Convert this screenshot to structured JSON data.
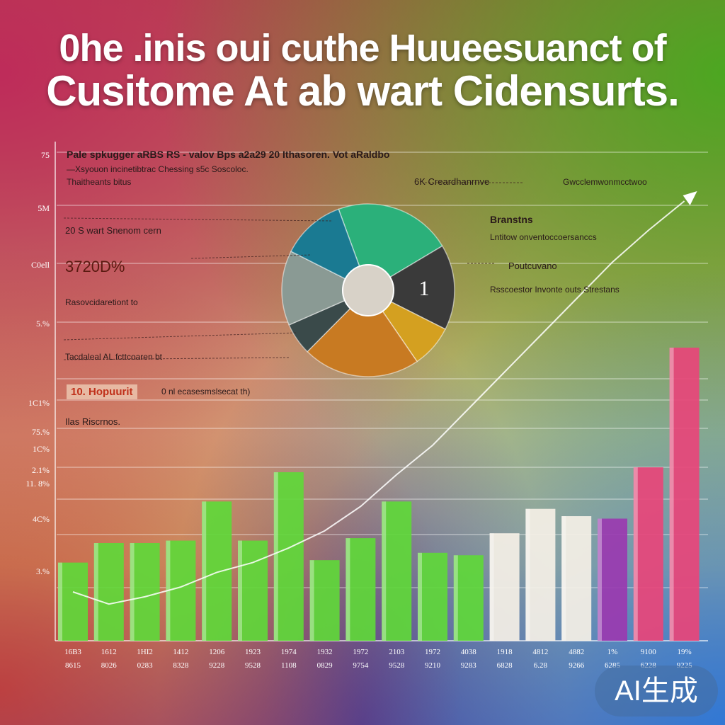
{
  "header": {
    "title_line1": "0he .inis oui cuthe Huueesuanct of",
    "title_line2": "Cusitome At ab wart Cidensurts."
  },
  "y_axis_labels": [
    "75",
    "5M",
    "C0ell",
    "5.%",
    "1C1%",
    "75.%",
    "1C%",
    "2.1%",
    "11. 8%",
    "4C%",
    "3.%"
  ],
  "annotations": {
    "top_left_1": "Pale spkugger aRBS RS - valov Bps a2a29 20 Ithasoren. Vot aRaldbo",
    "top_left_2": "—Xsyouon incinetibtrac Chessing s5c Soscoloc.",
    "top_left_3": "Thaitheants bitus",
    "left_1": "20 S wart Snenom cern",
    "big_value": "3720D%",
    "left_2": "Rasovcidaretiont to",
    "left_3": "Tacdaleal AL fcttcoaren bt",
    "tag_label": "10. Hopuurit",
    "tag_note": "0 nl ecasesmslsecat th)",
    "left_4": "Ilas Riscrnos.",
    "right_1": "6K Creardhanrnve",
    "right_2": "Gwcclemwonmcctwoo",
    "right_3": "Branstns",
    "right_4": "Lntitow onventoccoersanccs",
    "right_5": "Poutcuvano",
    "right_6": "Rsscoestor Invonte outs Strestans"
  },
  "chart_data": [
    {
      "type": "pie",
      "slices": [
        {
          "label": "",
          "value": 22,
          "color": "#2bb07a"
        },
        {
          "label": "1",
          "value": 16,
          "color": "#3a3a3a"
        },
        {
          "label": "",
          "value": 8,
          "color": "#d4a020"
        },
        {
          "label": "",
          "value": 22,
          "color": "#c87a22"
        },
        {
          "label": "",
          "value": 6,
          "color": "#3a4a4a"
        },
        {
          "label": "",
          "value": 14,
          "color": "#8a9a94"
        },
        {
          "label": "",
          "value": 12,
          "color": "#1a7a92"
        }
      ]
    },
    {
      "type": "bar",
      "categories": [
        "16B3",
        "1612",
        "1HI2",
        "1412",
        "1206",
        "1923",
        "1974",
        "1932",
        "1972",
        "2103",
        "1972",
        "4038",
        "1918",
        "4812",
        "4882",
        "1%",
        "9100",
        "19%"
      ],
      "categories_secondary": [
        "8615",
        "8026",
        "0283",
        "8328",
        "9228",
        "9528",
        "1108",
        "0829",
        "9754",
        "9528",
        "9210",
        "9283",
        "6828",
        "6.28",
        "9266",
        "6285",
        "6228",
        "9225"
      ],
      "values": [
        32,
        40,
        40,
        41,
        57,
        41,
        69,
        33,
        42,
        57,
        36,
        35,
        44,
        54,
        51,
        50,
        71,
        120
      ],
      "trend": [
        20,
        15,
        18,
        22,
        28,
        32,
        38,
        45,
        55,
        68,
        80,
        95,
        110,
        125,
        140,
        155,
        168,
        180
      ],
      "ylim": [
        0,
        200
      ],
      "colors": {
        "green": "#5fd83a",
        "white": "#f5f0e6",
        "pink": "#e8457a",
        "purple": "#9a3ab0"
      }
    }
  ],
  "watermark": "AI生成"
}
